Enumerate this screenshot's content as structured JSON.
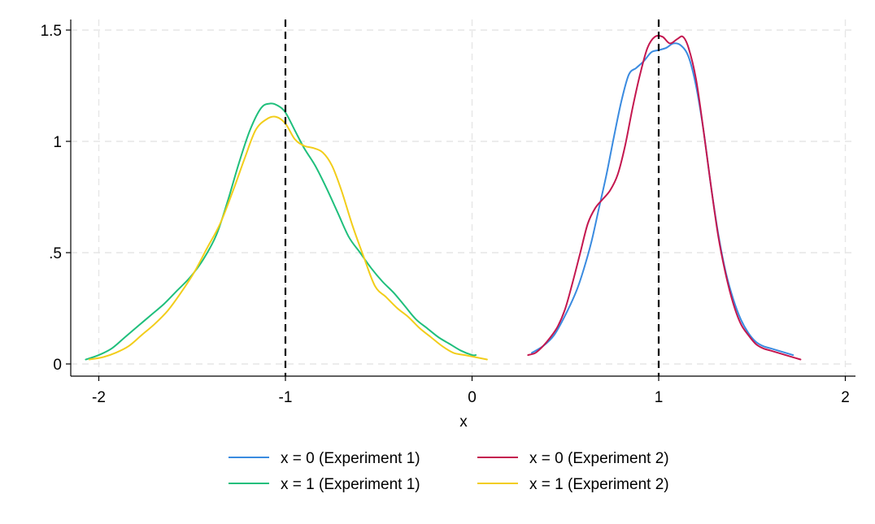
{
  "chart_data": {
    "type": "line",
    "title": "",
    "xlabel": "x",
    "ylabel": "",
    "xlim": [
      -2.1,
      2.05
    ],
    "ylim": [
      0,
      1.55
    ],
    "x_ticks": [
      -2,
      -1,
      0,
      1,
      2
    ],
    "x_tick_labels": [
      "-2",
      "-1",
      "0",
      "1",
      "2"
    ],
    "y_ticks": [
      0,
      0.5,
      1,
      1.5
    ],
    "y_tick_labels": [
      "0",
      ".5",
      "1",
      "1.5"
    ],
    "grid": true,
    "reference_lines_x": [
      -1,
      1
    ],
    "legend_position": "bottom",
    "series": [
      {
        "name": "x = 0 (Experiment 1)",
        "color": "#3a8be0",
        "x": [
          0.32,
          0.38,
          0.44,
          0.5,
          0.56,
          0.6,
          0.64,
          0.68,
          0.72,
          0.76,
          0.8,
          0.84,
          0.88,
          0.92,
          0.96,
          1.0,
          1.04,
          1.08,
          1.12,
          1.16,
          1.2,
          1.24,
          1.28,
          1.32,
          1.36,
          1.4,
          1.44,
          1.48,
          1.52,
          1.56,
          1.6,
          1.64,
          1.68,
          1.72
        ],
        "values": [
          0.05,
          0.08,
          0.13,
          0.22,
          0.33,
          0.43,
          0.55,
          0.7,
          0.85,
          1.02,
          1.18,
          1.3,
          1.33,
          1.36,
          1.4,
          1.41,
          1.42,
          1.44,
          1.43,
          1.38,
          1.25,
          1.05,
          0.8,
          0.58,
          0.41,
          0.29,
          0.2,
          0.14,
          0.1,
          0.08,
          0.07,
          0.06,
          0.05,
          0.04
        ]
      },
      {
        "name": "x = 0 (Experiment 2)",
        "color": "#c4174f",
        "x": [
          0.3,
          0.34,
          0.38,
          0.42,
          0.46,
          0.5,
          0.54,
          0.58,
          0.62,
          0.66,
          0.7,
          0.74,
          0.78,
          0.82,
          0.86,
          0.9,
          0.94,
          0.98,
          1.02,
          1.06,
          1.1,
          1.13,
          1.16,
          1.2,
          1.24,
          1.28,
          1.32,
          1.36,
          1.4,
          1.44,
          1.48,
          1.52,
          1.56,
          1.6,
          1.64,
          1.68,
          1.72,
          1.76
        ],
        "values": [
          0.04,
          0.05,
          0.08,
          0.12,
          0.17,
          0.25,
          0.37,
          0.5,
          0.63,
          0.7,
          0.74,
          0.78,
          0.85,
          0.98,
          1.15,
          1.3,
          1.42,
          1.47,
          1.47,
          1.44,
          1.46,
          1.47,
          1.42,
          1.28,
          1.05,
          0.8,
          0.57,
          0.4,
          0.27,
          0.18,
          0.13,
          0.09,
          0.07,
          0.06,
          0.05,
          0.04,
          0.03,
          0.02
        ]
      },
      {
        "name": "x = 1 (Experiment 1)",
        "color": "#1fbf7c",
        "x": [
          -2.07,
          -2.0,
          -1.93,
          -1.86,
          -1.79,
          -1.72,
          -1.65,
          -1.58,
          -1.51,
          -1.44,
          -1.37,
          -1.31,
          -1.25,
          -1.19,
          -1.13,
          -1.08,
          -1.04,
          -1.0,
          -0.95,
          -0.9,
          -0.84,
          -0.78,
          -0.72,
          -0.66,
          -0.6,
          -0.54,
          -0.48,
          -0.42,
          -0.36,
          -0.3,
          -0.24,
          -0.18,
          -0.12,
          -0.06,
          0.0,
          0.02
        ],
        "values": [
          0.02,
          0.04,
          0.07,
          0.12,
          0.17,
          0.22,
          0.27,
          0.33,
          0.39,
          0.47,
          0.58,
          0.73,
          0.9,
          1.05,
          1.15,
          1.17,
          1.16,
          1.13,
          1.05,
          0.97,
          0.89,
          0.79,
          0.68,
          0.57,
          0.5,
          0.43,
          0.37,
          0.32,
          0.26,
          0.2,
          0.16,
          0.12,
          0.09,
          0.06,
          0.04,
          0.04
        ]
      },
      {
        "name": "x = 1 (Experiment 2)",
        "color": "#f2cd1a",
        "x": [
          -2.05,
          -1.98,
          -1.91,
          -1.84,
          -1.77,
          -1.7,
          -1.63,
          -1.56,
          -1.49,
          -1.42,
          -1.35,
          -1.28,
          -1.22,
          -1.16,
          -1.1,
          -1.05,
          -1.0,
          -0.95,
          -0.9,
          -0.85,
          -0.8,
          -0.75,
          -0.7,
          -0.64,
          -0.58,
          -0.52,
          -0.46,
          -0.4,
          -0.34,
          -0.28,
          -0.22,
          -0.16,
          -0.1,
          -0.04,
          0.02,
          0.08
        ],
        "values": [
          0.02,
          0.03,
          0.05,
          0.08,
          0.13,
          0.18,
          0.24,
          0.32,
          0.41,
          0.52,
          0.63,
          0.78,
          0.92,
          1.05,
          1.1,
          1.11,
          1.08,
          1.01,
          0.98,
          0.97,
          0.95,
          0.89,
          0.78,
          0.62,
          0.48,
          0.35,
          0.3,
          0.25,
          0.21,
          0.16,
          0.12,
          0.08,
          0.05,
          0.04,
          0.03,
          0.02
        ]
      }
    ]
  }
}
